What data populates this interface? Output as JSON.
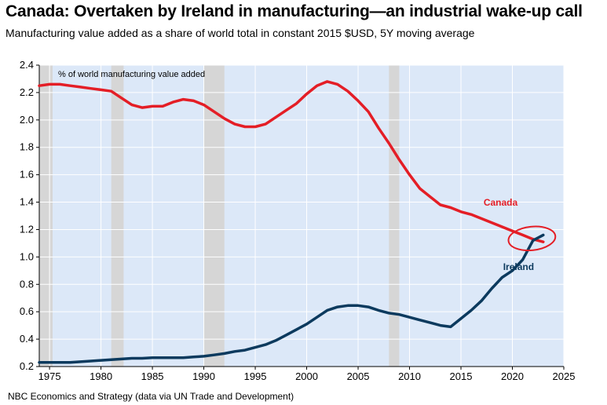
{
  "title": "Canada: Overtaken by Ireland in manufacturing—an industrial wake-up call",
  "subtitle": "Manufacturing value added as a share of world total in constant 2015 $USD, 5Y moving average",
  "source": "NBC Economics and Strategy (data via UN Trade and Development)",
  "colors": {
    "plot_bg": "#dce8f8",
    "recession": "#d6d6d6",
    "canada": "#e41e26",
    "ireland": "#0c3a5e",
    "highlight": "#e41e26"
  },
  "chart_data": {
    "type": "line",
    "title": "Canada: Overtaken by Ireland in manufacturing—an industrial wake-up call",
    "ylabel": "% of world manufacturing value added",
    "xlabel": "",
    "xlim": [
      1974,
      2025
    ],
    "ylim": [
      0.2,
      2.4
    ],
    "xticks": [
      1975,
      1980,
      1985,
      1990,
      1995,
      2000,
      2005,
      2010,
      2015,
      2020,
      2025
    ],
    "yticks": [
      "0.2",
      "0.4",
      "0.6",
      "0.8",
      "1.0",
      "1.2",
      "1.4",
      "1.6",
      "1.8",
      "2.0",
      "2.2",
      "2.4"
    ],
    "shaded_periods": [
      [
        1974,
        1975.3
      ],
      [
        1981,
        1982.2
      ],
      [
        1990,
        1992
      ],
      [
        2008,
        2009
      ]
    ],
    "series": [
      {
        "name": "Canada",
        "x": [
          1974,
          1975,
          1976,
          1977,
          1978,
          1979,
          1980,
          1981,
          1982,
          1983,
          1984,
          1985,
          1986,
          1987,
          1988,
          1989,
          1990,
          1991,
          1992,
          1993,
          1994,
          1995,
          1996,
          1997,
          1998,
          1999,
          2000,
          2001,
          2002,
          2003,
          2004,
          2005,
          2006,
          2007,
          2008,
          2009,
          2010,
          2011,
          2012,
          2013,
          2014,
          2015,
          2016,
          2017,
          2018,
          2019,
          2020,
          2021,
          2022,
          2023
        ],
        "values": [
          2.25,
          2.26,
          2.26,
          2.25,
          2.24,
          2.23,
          2.22,
          2.21,
          2.16,
          2.11,
          2.09,
          2.1,
          2.1,
          2.13,
          2.15,
          2.14,
          2.11,
          2.06,
          2.01,
          1.97,
          1.95,
          1.95,
          1.97,
          2.02,
          2.07,
          2.12,
          2.19,
          2.25,
          2.28,
          2.26,
          2.21,
          2.14,
          2.06,
          1.94,
          1.83,
          1.71,
          1.6,
          1.5,
          1.44,
          1.38,
          1.36,
          1.33,
          1.31,
          1.28,
          1.25,
          1.22,
          1.19,
          1.16,
          1.13,
          1.11
        ]
      },
      {
        "name": "Ireland",
        "x": [
          1974,
          1975,
          1976,
          1977,
          1978,
          1979,
          1980,
          1981,
          1982,
          1983,
          1984,
          1985,
          1986,
          1987,
          1988,
          1989,
          1990,
          1991,
          1992,
          1993,
          1994,
          1995,
          1996,
          1997,
          1998,
          1999,
          2000,
          2001,
          2002,
          2003,
          2004,
          2005,
          2006,
          2007,
          2008,
          2009,
          2010,
          2011,
          2012,
          2013,
          2014,
          2015,
          2016,
          2017,
          2018,
          2019,
          2020,
          2021,
          2022,
          2023
        ],
        "values": [
          0.23,
          0.23,
          0.23,
          0.23,
          0.235,
          0.24,
          0.245,
          0.25,
          0.255,
          0.26,
          0.26,
          0.265,
          0.265,
          0.265,
          0.265,
          0.27,
          0.275,
          0.285,
          0.295,
          0.31,
          0.32,
          0.34,
          0.36,
          0.39,
          0.43,
          0.47,
          0.51,
          0.56,
          0.61,
          0.635,
          0.645,
          0.645,
          0.635,
          0.61,
          0.59,
          0.58,
          0.56,
          0.54,
          0.52,
          0.5,
          0.49,
          0.55,
          0.61,
          0.68,
          0.77,
          0.85,
          0.9,
          0.98,
          1.12,
          1.16
        ]
      }
    ],
    "annotations": [
      "Canada",
      "Ireland"
    ]
  }
}
